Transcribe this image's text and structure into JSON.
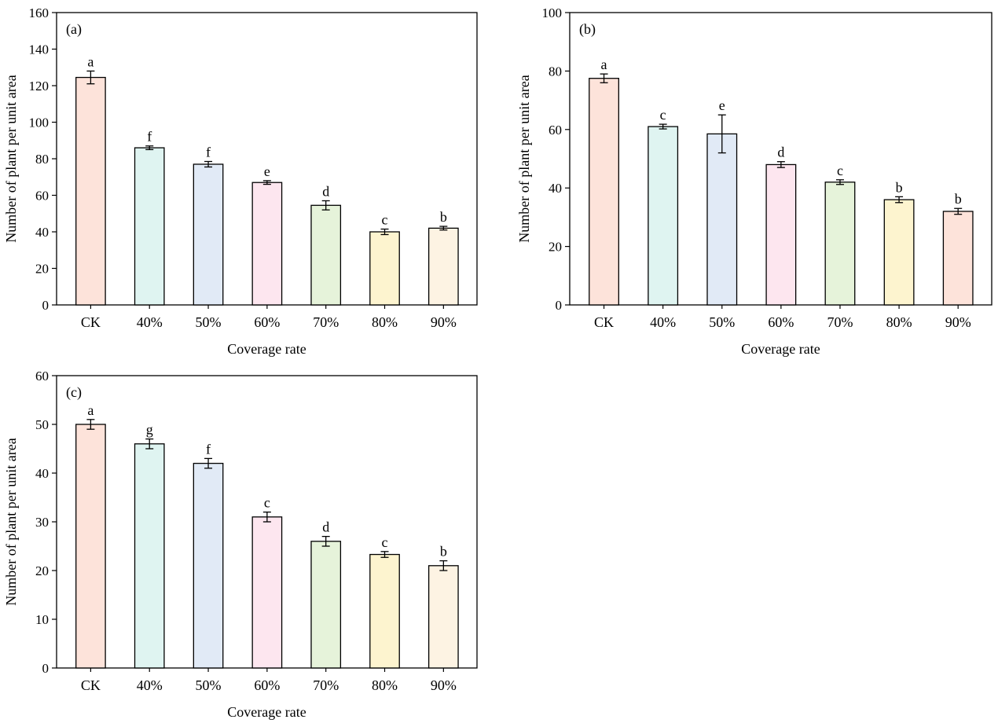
{
  "chart_data": [
    {
      "type": "bar",
      "panel_label": "(a)",
      "xlabel": "Coverage rate",
      "ylabel": "Number of plant per unit area",
      "ylim": [
        0,
        160
      ],
      "yticks": [
        0,
        20,
        40,
        60,
        80,
        100,
        120,
        140,
        160
      ],
      "categories": [
        "CK",
        "40%",
        "50%",
        "60%",
        "70%",
        "80%",
        "90%"
      ],
      "values": [
        124.5,
        86,
        77,
        67,
        54.5,
        40,
        42
      ],
      "errors": [
        3.5,
        1,
        1.5,
        1,
        2.5,
        1.5,
        1
      ],
      "significance": [
        "a",
        "f",
        "f",
        "e",
        "d",
        "c",
        "b"
      ],
      "colors": [
        "#fde3da",
        "#dff4f1",
        "#e1eaf6",
        "#fde6ef",
        "#e6f3da",
        "#fdf4cf",
        "#fdf3e3"
      ],
      "grid": false
    },
    {
      "type": "bar",
      "panel_label": "(b)",
      "xlabel": "Coverage rate",
      "ylabel": "Number of plant per unit area",
      "ylim": [
        0,
        100
      ],
      "yticks": [
        0,
        20,
        40,
        60,
        80,
        100
      ],
      "categories": [
        "CK",
        "40%",
        "50%",
        "60%",
        "70%",
        "80%",
        "90%"
      ],
      "values": [
        77.5,
        61,
        58.5,
        48,
        42,
        36,
        32
      ],
      "errors": [
        1.5,
        0.8,
        6.5,
        1,
        0.8,
        1,
        1
      ],
      "significance": [
        "a",
        "c",
        "e",
        "d",
        "c",
        "b",
        "b"
      ],
      "colors": [
        "#fde3da",
        "#dff4f1",
        "#e1eaf6",
        "#fde6ef",
        "#e6f3da",
        "#fdf4cf",
        "#fde3da"
      ],
      "grid": false
    },
    {
      "type": "bar",
      "panel_label": "(c)",
      "xlabel": "Coverage rate",
      "ylabel": "Number of plant per unit area",
      "ylim": [
        0,
        60
      ],
      "yticks": [
        0,
        10,
        20,
        30,
        40,
        50,
        60
      ],
      "categories": [
        "CK",
        "40%",
        "50%",
        "60%",
        "70%",
        "80%",
        "90%"
      ],
      "values": [
        50,
        46,
        42,
        31,
        26,
        23.3,
        21
      ],
      "errors": [
        1,
        1,
        1,
        1,
        1,
        0.6,
        1
      ],
      "significance": [
        "a",
        "g",
        "f",
        "c",
        "d",
        "c",
        "b"
      ],
      "colors": [
        "#fde3da",
        "#dff4f1",
        "#e1eaf6",
        "#fde6ef",
        "#e6f3da",
        "#fdf4cf",
        "#fdf3e3"
      ],
      "grid": false
    }
  ]
}
